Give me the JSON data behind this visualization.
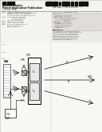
{
  "bg_color": "#d0ccc7",
  "page_color": "#f5f3ef",
  "line_color": "#444444",
  "text_color": "#333333",
  "dark": "#111111",
  "white": "#ffffff",
  "gray_light": "#e0ddd8",
  "gray_med": "#c8c5c0"
}
